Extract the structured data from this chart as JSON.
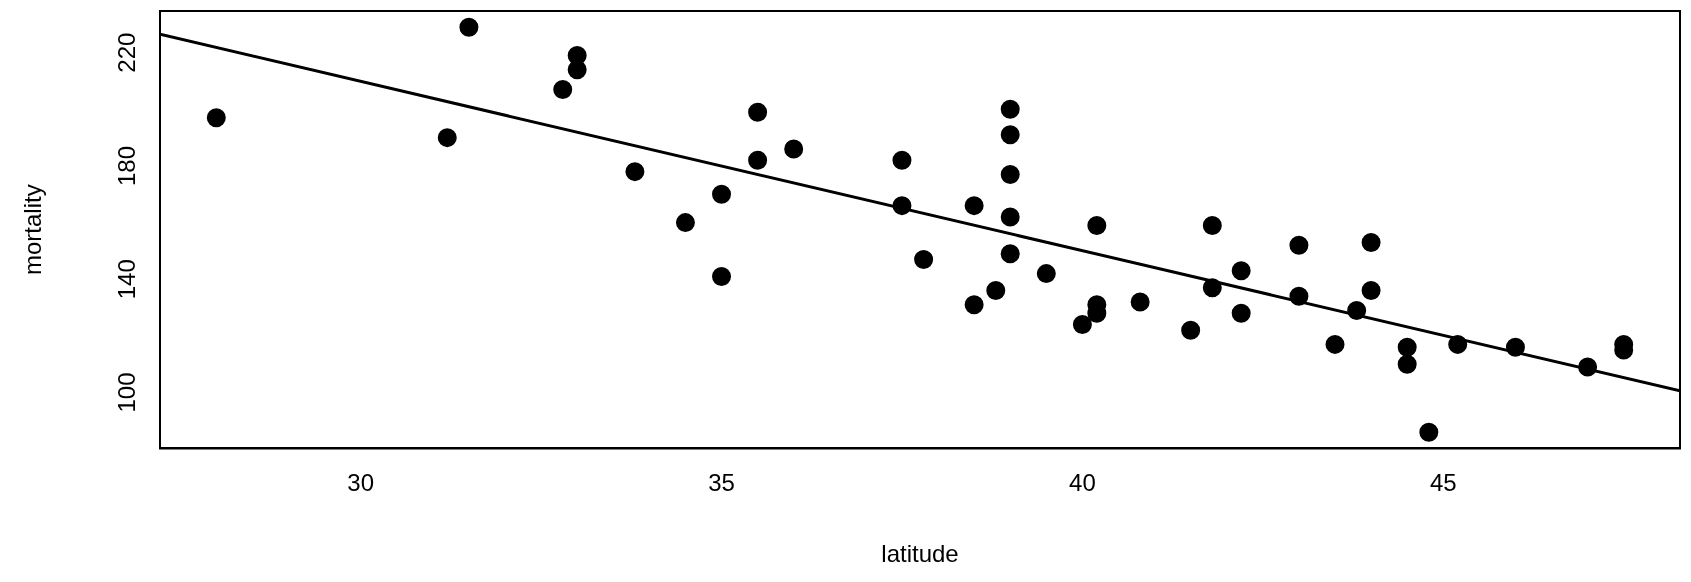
{
  "chart_data": {
    "type": "scatter",
    "xlabel": "latitude",
    "ylabel": "mortality",
    "xlim": [
      27.22,
      48.28
    ],
    "ylim": [
      80.28,
      234.72
    ],
    "xticks": [
      30,
      35,
      40,
      45
    ],
    "yticks": [
      100,
      140,
      180,
      220
    ],
    "grid": false,
    "legend": false,
    "marker": "circle",
    "series": [
      {
        "type": "scatter",
        "color": "#000000",
        "x": [
          33.0,
          34.5,
          35.0,
          37.5,
          39.0,
          41.8,
          39.0,
          39.0,
          28.0,
          33.0,
          44.5,
          40.0,
          40.2,
          42.2,
          38.5,
          37.8,
          31.2,
          45.2,
          39.0,
          42.2,
          43.5,
          46.0,
          32.8,
          38.5,
          47.0,
          41.5,
          39.0,
          43.8,
          40.2,
          35.0,
          43.0,
          35.5,
          47.5,
          40.2,
          35.5,
          44.0,
          40.8,
          41.8,
          33.8,
          44.8,
          36.0,
          31.5,
          39.5,
          44.0,
          37.5,
          47.5,
          38.8,
          44.5,
          43.0
        ],
        "values": [
          219,
          160,
          170,
          182,
          149,
          159,
          200,
          177,
          197,
          214,
          116,
          124,
          128,
          128,
          166,
          147,
          190,
          117,
          162,
          143,
          117,
          116,
          207,
          131,
          109,
          122,
          191,
          129,
          159,
          141,
          152,
          199,
          115,
          131,
          182,
          136,
          132,
          137,
          178,
          86,
          186,
          229,
          142,
          153,
          166,
          117,
          136,
          110,
          134
        ]
      },
      {
        "type": "line",
        "color": "#000000",
        "marker": "none",
        "line_style": "solid",
        "x": [
          27.22,
          48.28
        ],
        "values": [
          226.5,
          100.6
        ]
      }
    ]
  }
}
